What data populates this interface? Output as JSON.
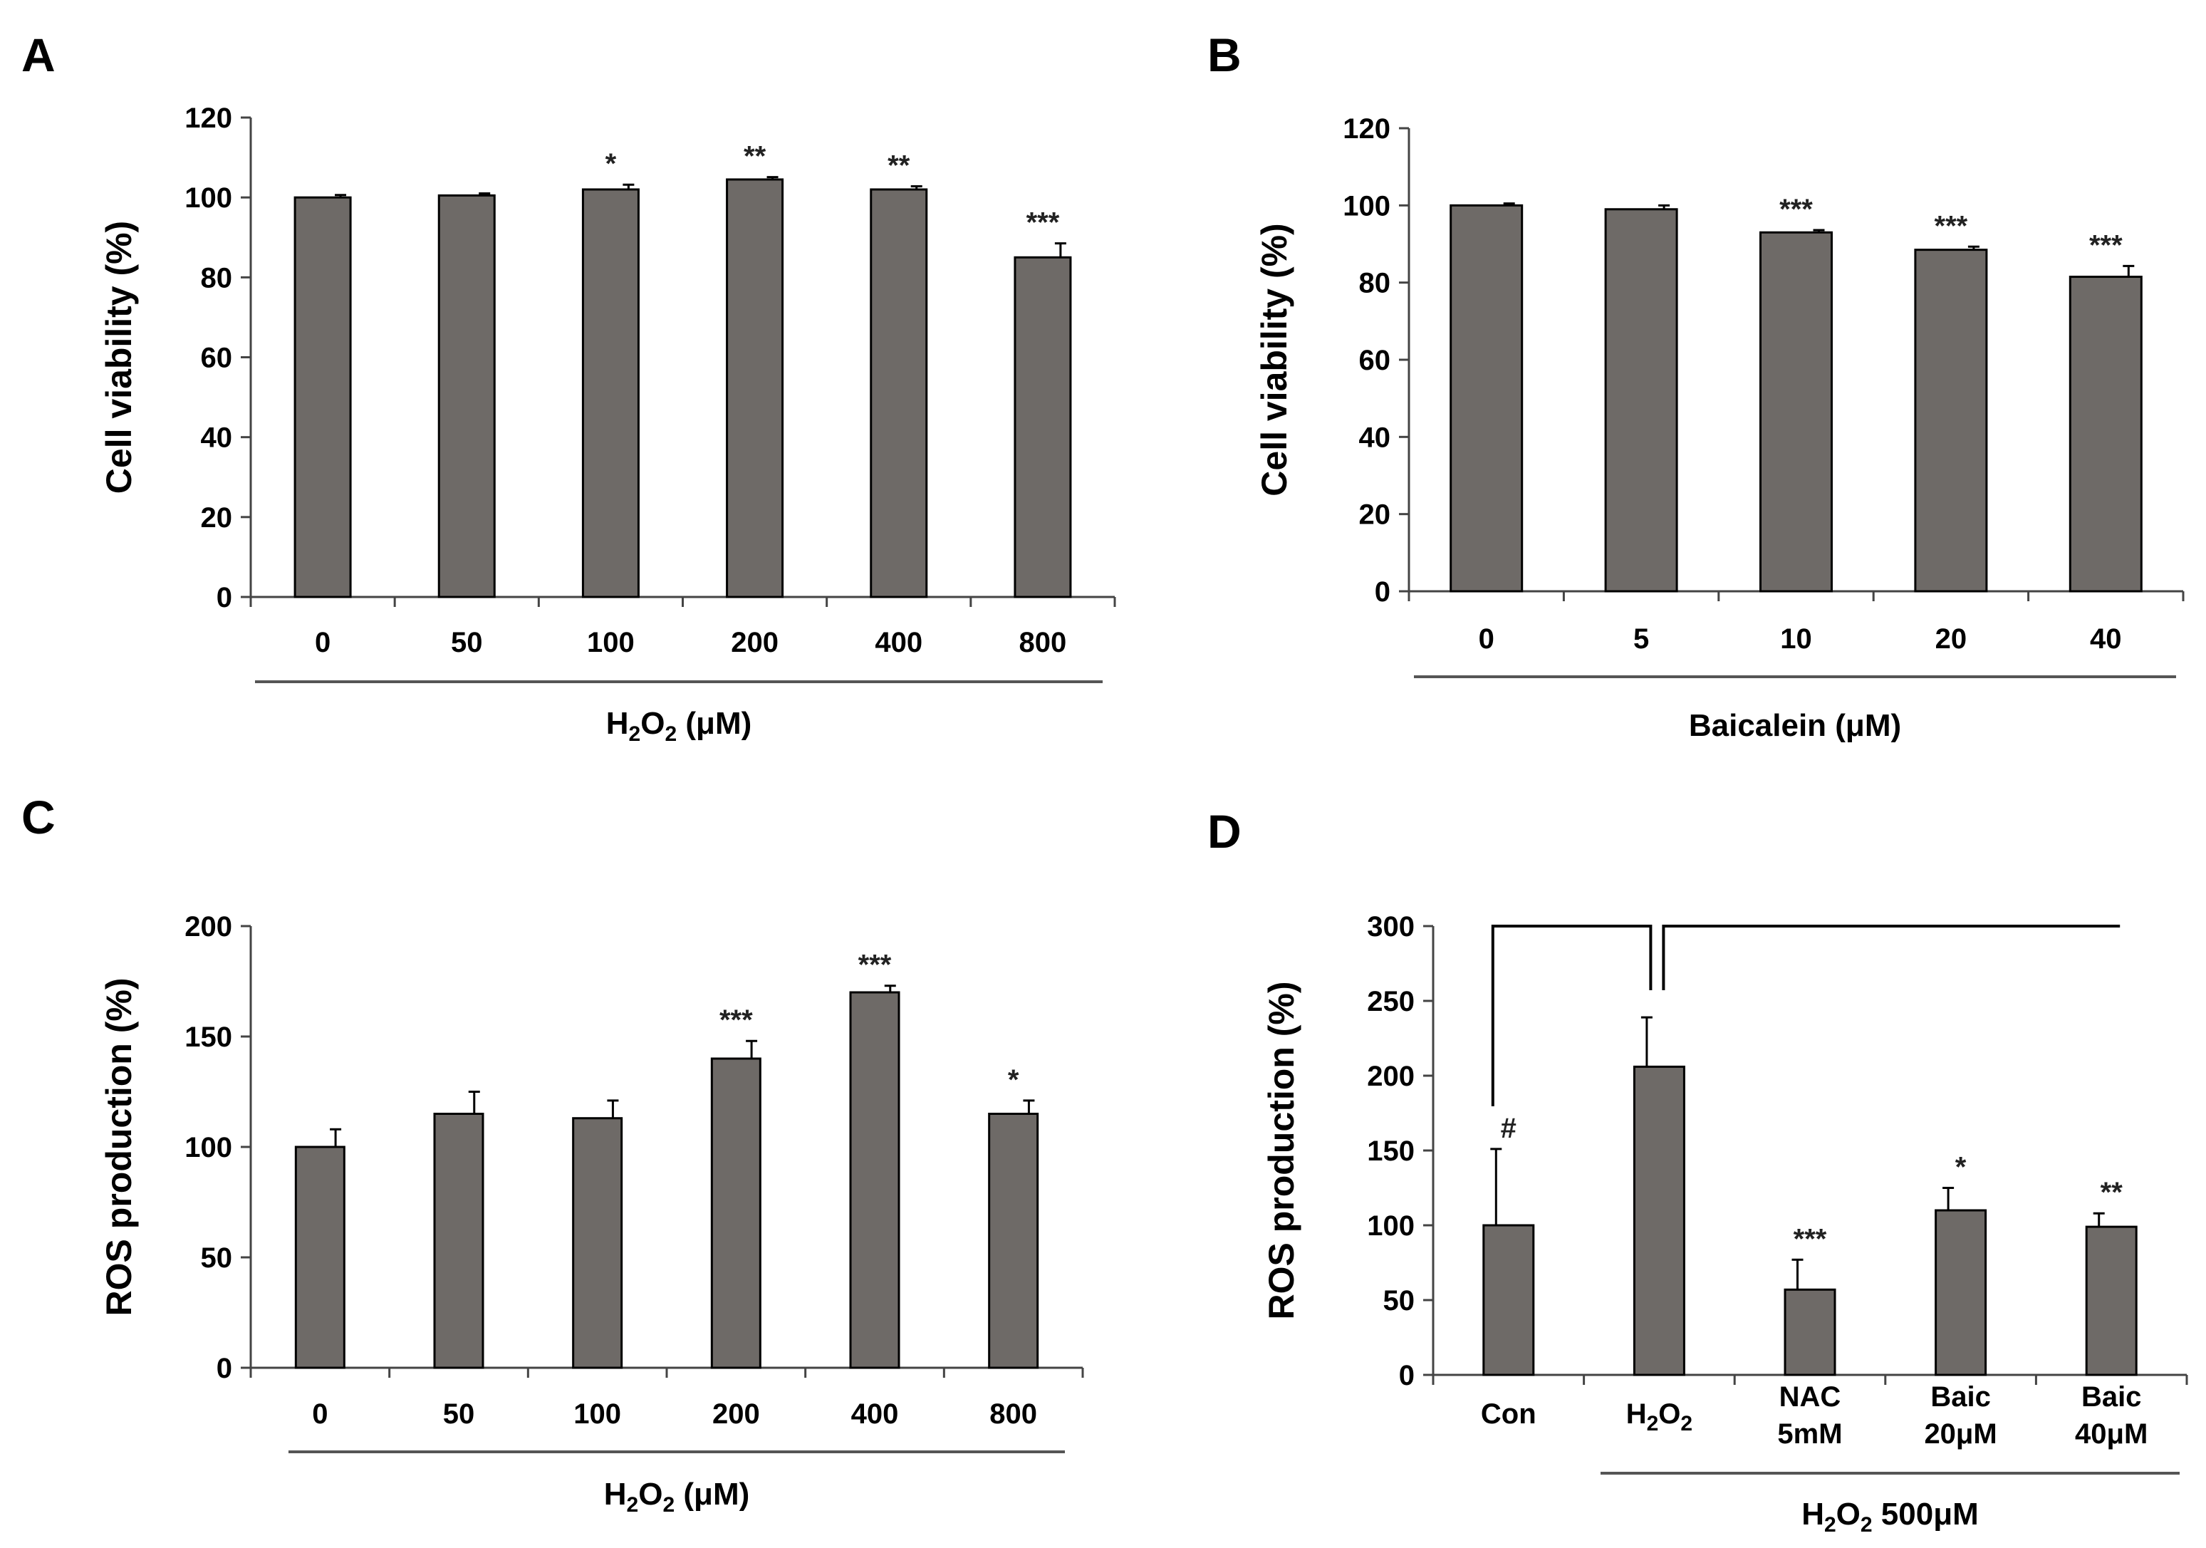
{
  "chart_data": [
    {
      "panel": "A",
      "type": "bar",
      "categories": [
        "0",
        "50",
        "100",
        "200",
        "400",
        "800"
      ],
      "values": [
        100,
        100.5,
        102,
        104.5,
        102,
        85
      ],
      "errors": [
        0.6,
        0.5,
        1.2,
        0.6,
        0.8,
        3.5
      ],
      "significance": [
        "",
        "",
        "*",
        "**",
        "**",
        "***"
      ],
      "ylabel": "Cell viability (%)",
      "xlabel": "H2O2 (μM)",
      "xlabel_parts": {
        "base": "H",
        "sub1": "2",
        "mid": "O",
        "sub2": "2",
        "rest": " (μM)"
      },
      "ylim": [
        0,
        120
      ],
      "yticks": [
        0,
        20,
        40,
        60,
        80,
        100,
        120
      ]
    },
    {
      "panel": "B",
      "type": "bar",
      "categories": [
        "0",
        "5",
        "10",
        "20",
        "40"
      ],
      "values": [
        100,
        99,
        93,
        88.5,
        81.5
      ],
      "errors": [
        0.5,
        1.0,
        0.6,
        0.8,
        2.8
      ],
      "significance": [
        "",
        "",
        "***",
        "***",
        "***"
      ],
      "ylabel": "Cell viability (%)",
      "xlabel": "Baicalein (μM)",
      "ylim": [
        0,
        120
      ],
      "yticks": [
        0,
        20,
        40,
        60,
        80,
        100,
        120
      ]
    },
    {
      "panel": "C",
      "type": "bar",
      "categories": [
        "0",
        "50",
        "100",
        "200",
        "400",
        "800"
      ],
      "values": [
        100,
        115,
        113,
        140,
        170,
        115
      ],
      "errors": [
        8,
        10,
        8,
        8,
        3,
        6
      ],
      "significance": [
        "",
        "",
        "",
        "***",
        "***",
        "*"
      ],
      "ylabel": "ROS production (%)",
      "xlabel": "H2O2 (μM)",
      "xlabel_parts": {
        "base": "H",
        "sub1": "2",
        "mid": "O",
        "sub2": "2",
        "rest": " (μM)"
      },
      "ylim": [
        0,
        200
      ],
      "yticks": [
        0,
        50,
        100,
        150,
        200
      ]
    },
    {
      "panel": "D",
      "type": "bar",
      "categories": [
        "Con",
        "H2O2",
        "NAC 5mM",
        "Baic 20μM",
        "Baic 40μM"
      ],
      "category_lines": [
        [
          "Con"
        ],
        [
          "H2O2"
        ],
        [
          "NAC",
          "5mM"
        ],
        [
          "Baic",
          "20μM"
        ],
        [
          "Baic",
          "40μM"
        ]
      ],
      "values": [
        100,
        206,
        57,
        110,
        99
      ],
      "errors": [
        51,
        33,
        20,
        15,
        9
      ],
      "significance": [
        "#",
        "",
        "***",
        "*",
        "**"
      ],
      "ylabel": "ROS production (%)",
      "xlabel": "H2O2 500μM",
      "xlabel_parts": {
        "base": "H",
        "sub1": "2",
        "mid": "O",
        "sub2": "2",
        "rest": " 500μM"
      },
      "group_label_covers": [
        "H2O2",
        "NAC 5mM",
        "Baic 20μM",
        "Baic 40μM"
      ],
      "ylim": [
        0,
        300
      ],
      "yticks": [
        0,
        50,
        100,
        150,
        200,
        250,
        300
      ]
    }
  ]
}
